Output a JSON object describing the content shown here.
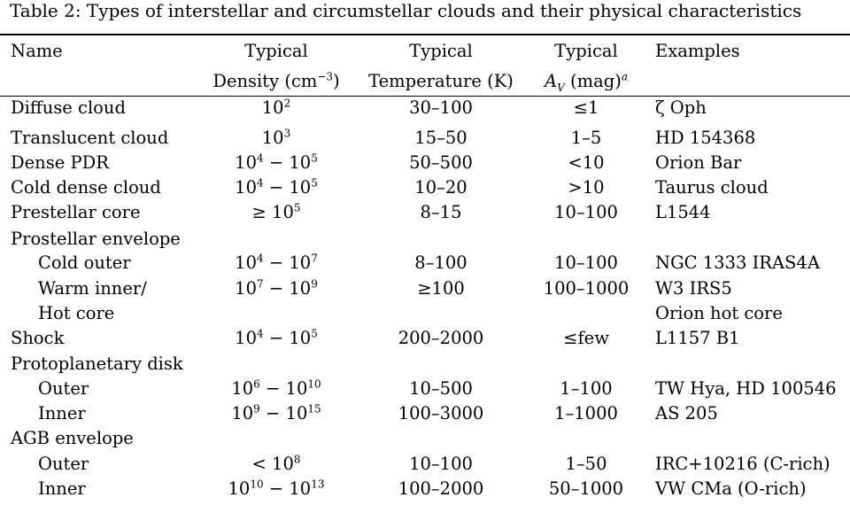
{
  "caption": "Table 2: Types of interstellar and circumstellar clouds and their physical characteristics",
  "headers": {
    "name": "Name",
    "density_top": "Typical",
    "density_bottom": "Density (cm",
    "density_exp": "−3",
    "density_close": ")",
    "temperature_top": "Typical",
    "temperature_bottom": "Temperature (K)",
    "av_top": "Typical",
    "av_symbol": "A",
    "av_sub": "V",
    "av_unit": " (mag)",
    "av_note": "a",
    "examples": "Examples"
  },
  "rows": [
    {
      "name": "Diffuse cloud",
      "indent": false,
      "density": [
        [
          "10",
          "2"
        ]
      ],
      "temperature": "30–100",
      "av": "≤1",
      "example": "ζ Oph"
    },
    {
      "name": "Translucent cloud",
      "indent": false,
      "density": [
        [
          "10",
          "3"
        ]
      ],
      "temperature": "15–50",
      "av": "1–5",
      "example": "HD 154368"
    },
    {
      "name": "Dense PDR",
      "indent": false,
      "density": [
        [
          "10",
          "4"
        ],
        " − ",
        [
          "10",
          "5"
        ]
      ],
      "temperature": "50–500",
      "av": "<10",
      "example": "Orion Bar"
    },
    {
      "name": "Cold dense cloud",
      "indent": false,
      "density": [
        [
          "10",
          "4"
        ],
        " − ",
        [
          "10",
          "5"
        ]
      ],
      "temperature": "10–20",
      "av": ">10",
      "example": "Taurus cloud"
    },
    {
      "name": "Prestellar core",
      "indent": false,
      "density": [
        "≥ ",
        [
          "10",
          "5"
        ]
      ],
      "temperature": "8–15",
      "av": "10–100",
      "example": "L1544"
    },
    {
      "name": "Prostellar envelope",
      "indent": false,
      "density": [],
      "temperature": "",
      "av": "",
      "example": ""
    },
    {
      "name": "Cold outer",
      "indent": true,
      "density": [
        [
          "10",
          "4"
        ],
        " − ",
        [
          "10",
          "7"
        ]
      ],
      "temperature": "8–100",
      "av": "10–100",
      "example": "NGC 1333 IRAS4A"
    },
    {
      "name": "Warm inner/",
      "indent": true,
      "density": [
        [
          "10",
          "7"
        ],
        " − ",
        [
          "10",
          "9"
        ]
      ],
      "temperature": "≥100",
      "av": "100–1000",
      "example": "W3 IRS5"
    },
    {
      "name": "Hot core",
      "indent": true,
      "density": [],
      "temperature": "",
      "av": "",
      "example": "Orion hot core"
    },
    {
      "name": "Shock",
      "indent": false,
      "density": [
        [
          "10",
          "4"
        ],
        " − ",
        [
          "10",
          "5"
        ]
      ],
      "temperature": "200–2000",
      "av": "≤few",
      "example": "L1157 B1"
    },
    {
      "name": "Protoplanetary disk",
      "indent": false,
      "density": [],
      "temperature": "",
      "av": "",
      "example": ""
    },
    {
      "name": "Outer",
      "indent": true,
      "density": [
        [
          "10",
          "6"
        ],
        " − ",
        [
          "10",
          "10"
        ]
      ],
      "temperature": "10–500",
      "av": "1–100",
      "example": "TW Hya, HD 100546"
    },
    {
      "name": "Inner",
      "indent": true,
      "density": [
        [
          "10",
          "9"
        ],
        " − ",
        [
          "10",
          "15"
        ]
      ],
      "temperature": "100–3000",
      "av": "1–1000",
      "example": "AS 205"
    },
    {
      "name": "AGB envelope",
      "indent": false,
      "density": [],
      "temperature": "",
      "av": "",
      "example": ""
    },
    {
      "name": "Outer",
      "indent": true,
      "density": [
        "< ",
        [
          "10",
          "8"
        ]
      ],
      "temperature": "10–100",
      "av": "1–50",
      "example": "IRC+10216 (C-rich)"
    },
    {
      "name": "Inner",
      "indent": true,
      "density": [
        [
          "10",
          "10"
        ],
        " − ",
        [
          "10",
          "13"
        ]
      ],
      "temperature": "100–2000",
      "av": "50–1000",
      "example": "VW CMa (O-rich)"
    }
  ]
}
